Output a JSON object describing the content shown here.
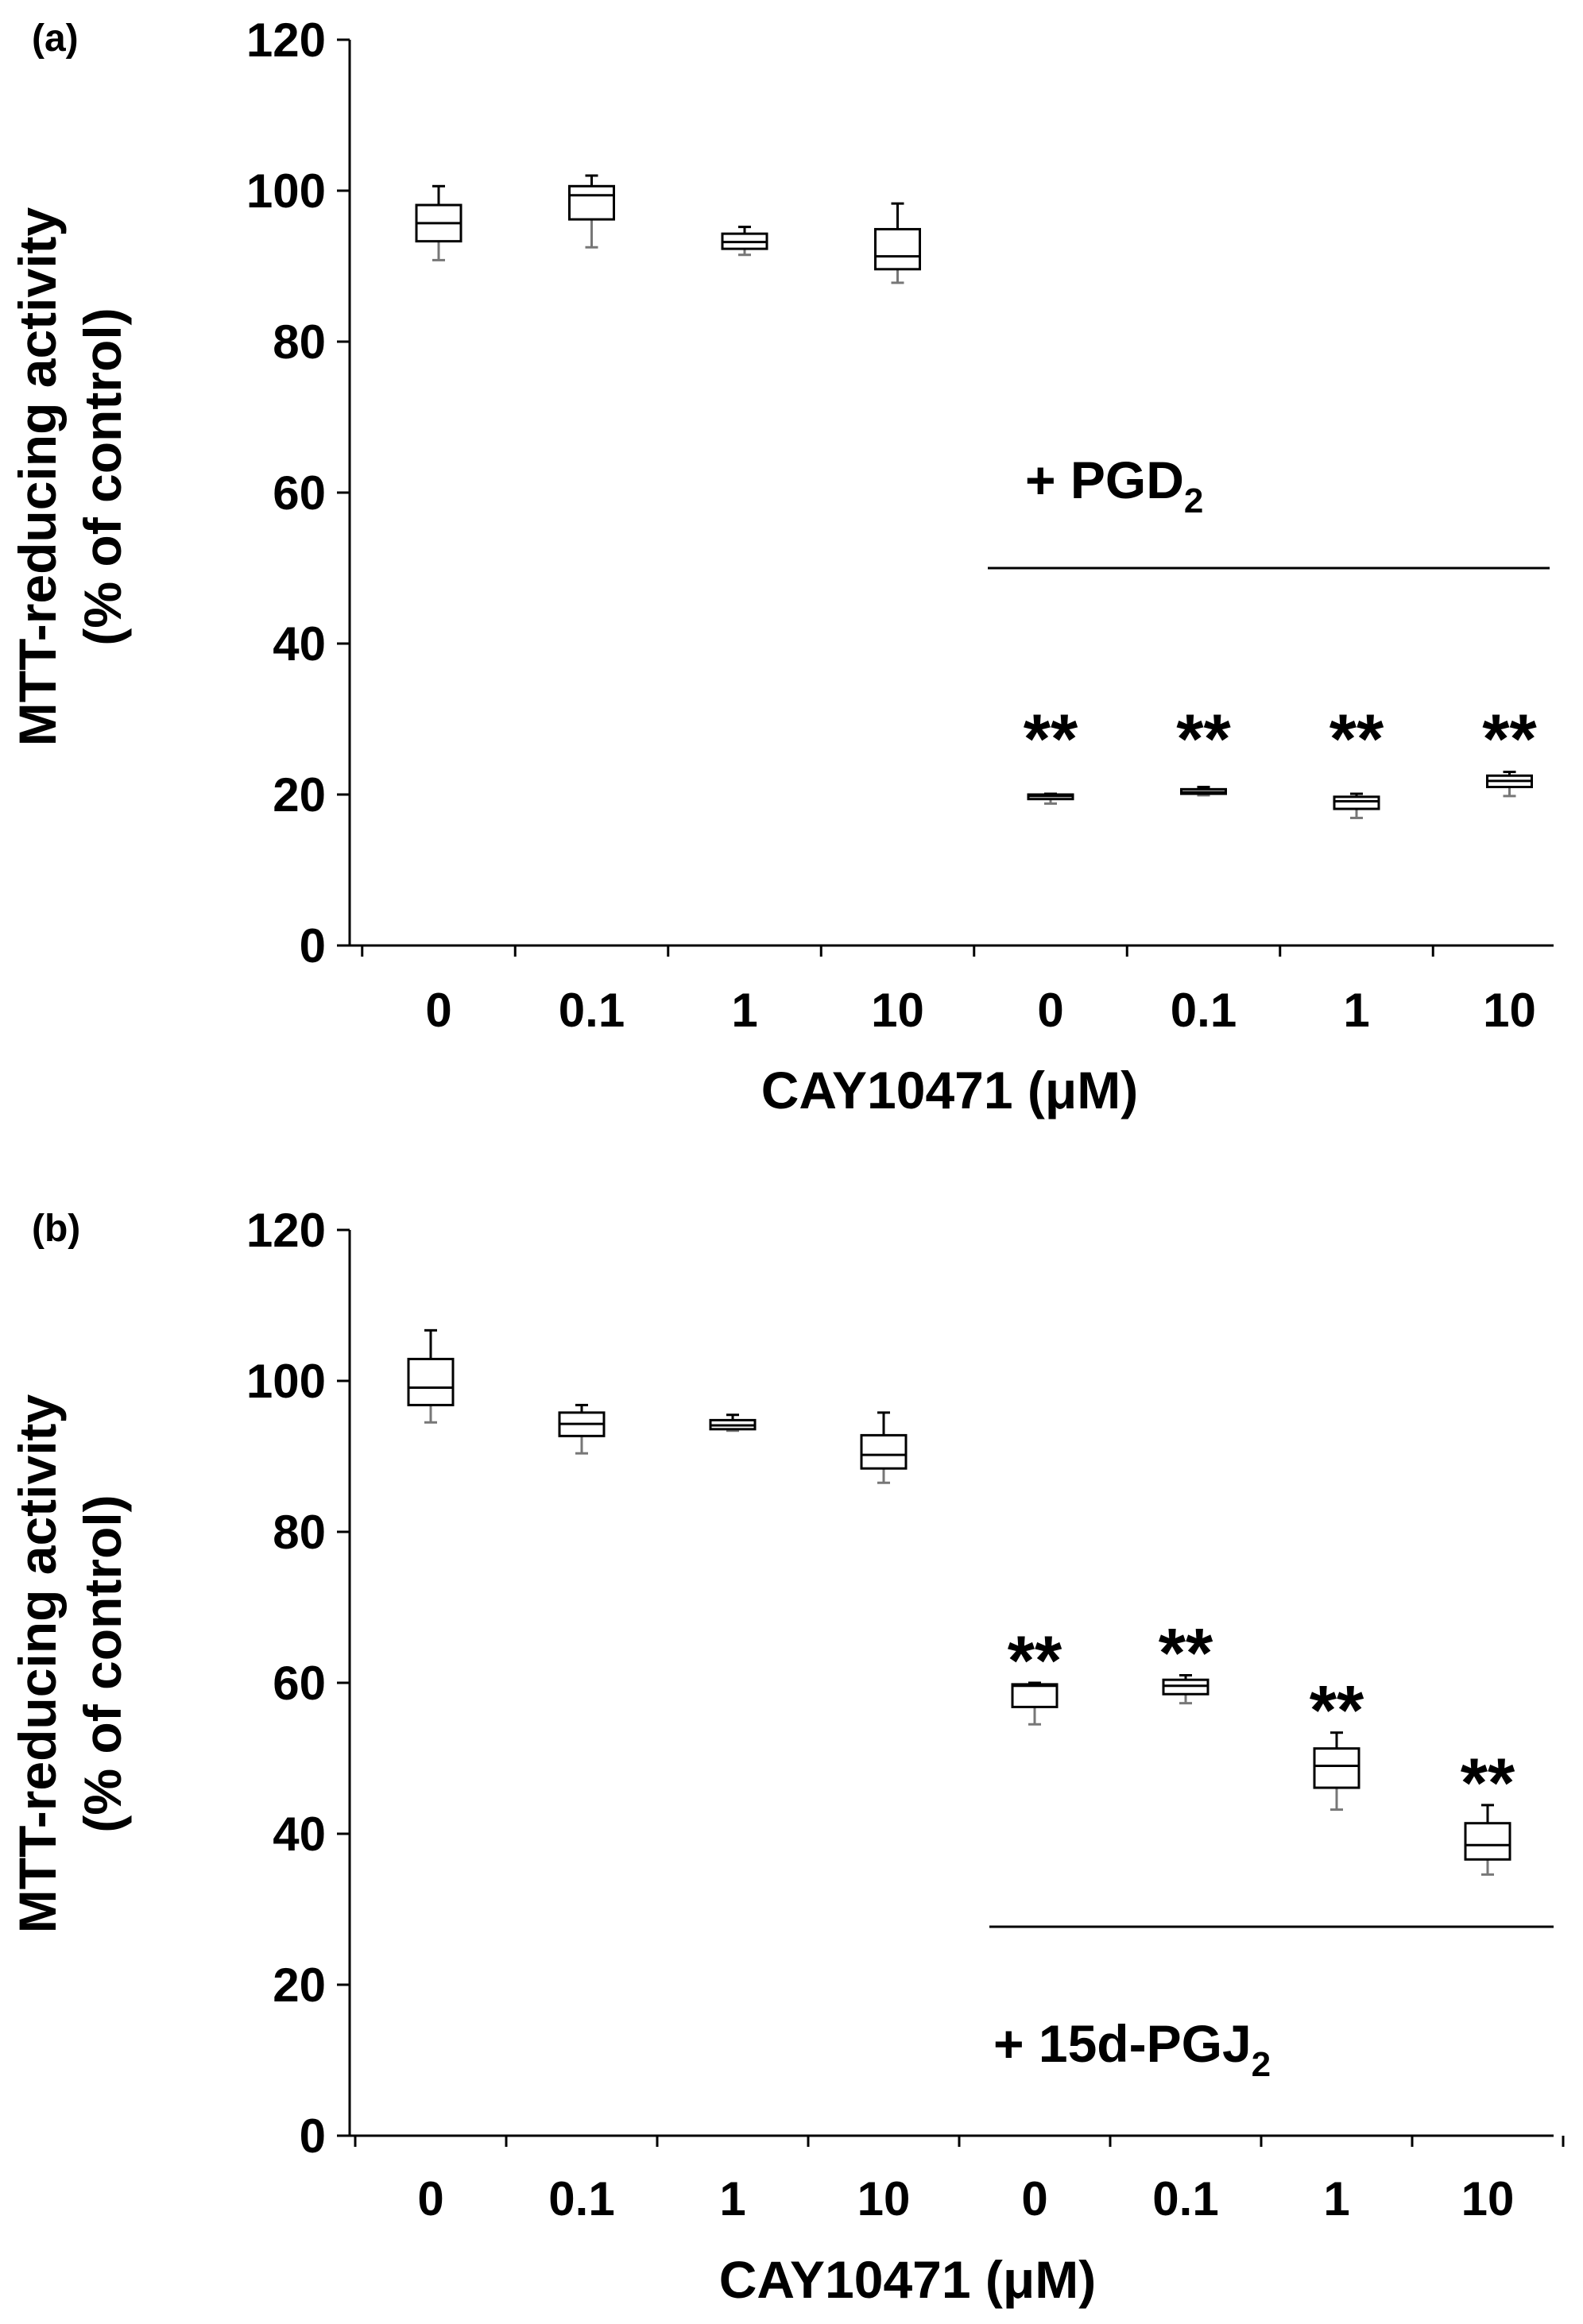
{
  "chart_data": [
    {
      "type": "box",
      "panel_label": "(a)",
      "xlabel": "CAY10471 (μM)",
      "ylabel_line1": "MTT-reducing activity",
      "ylabel_line2": "(% of control)",
      "ylim": [
        0,
        120
      ],
      "yticks": [
        "0",
        "20",
        "40",
        "60",
        "80",
        "100",
        "120"
      ],
      "categories": [
        "0",
        "0.1",
        "1",
        "10",
        "0",
        "0.1",
        "1",
        "10"
      ],
      "treatment_label": "+ PGD",
      "treatment_subscript": "2",
      "boxes": [
        {
          "min": 90.8,
          "q1": 93.3,
          "median": 95.7,
          "q3": 98.1,
          "max": 100.6,
          "sig": ""
        },
        {
          "min": 92.5,
          "q1": 96.2,
          "median": 99.4,
          "q3": 100.6,
          "max": 102.0,
          "sig": ""
        },
        {
          "min": 91.5,
          "q1": 92.3,
          "median": 93.2,
          "q3": 94.3,
          "max": 95.2,
          "sig": ""
        },
        {
          "min": 87.8,
          "q1": 89.6,
          "median": 91.3,
          "q3": 94.9,
          "max": 98.3,
          "sig": ""
        },
        {
          "min": 18.8,
          "q1": 19.4,
          "median": 19.8,
          "q3": 20.0,
          "max": 20.1,
          "sig": "**"
        },
        {
          "min": 19.9,
          "q1": 20.1,
          "median": 20.3,
          "q3": 20.7,
          "max": 21.0,
          "sig": "**"
        },
        {
          "min": 16.9,
          "q1": 18.1,
          "median": 19.1,
          "q3": 19.7,
          "max": 20.1,
          "sig": "**"
        },
        {
          "min": 19.8,
          "q1": 21.0,
          "median": 21.8,
          "q3": 22.5,
          "max": 23.0,
          "sig": "**"
        }
      ]
    },
    {
      "type": "box",
      "panel_label": "(b)",
      "xlabel": "CAY10471 (μM)",
      "ylabel_line1": "MTT-reducing activity",
      "ylabel_line2": "(% of control)",
      "ylim": [
        0,
        120
      ],
      "yticks": [
        "0",
        "20",
        "40",
        "60",
        "80",
        "100",
        "120"
      ],
      "categories": [
        "0",
        "0.1",
        "1",
        "10",
        "0",
        "0.1",
        "1",
        "10"
      ],
      "treatment_label": "+ 15d-PGJ",
      "treatment_subscript": "2",
      "boxes": [
        {
          "min": 94.5,
          "q1": 96.8,
          "median": 99.1,
          "q3": 102.9,
          "max": 106.7,
          "sig": ""
        },
        {
          "min": 90.4,
          "q1": 92.7,
          "median": 94.3,
          "q3": 95.8,
          "max": 96.8,
          "sig": ""
        },
        {
          "min": 93.4,
          "q1": 93.6,
          "median": 94.1,
          "q3": 94.8,
          "max": 95.5,
          "sig": ""
        },
        {
          "min": 86.5,
          "q1": 88.4,
          "median": 90.2,
          "q3": 92.8,
          "max": 95.8,
          "sig": ""
        },
        {
          "min": 54.5,
          "q1": 56.8,
          "median": 59.6,
          "q3": 59.8,
          "max": 60.0,
          "sig": "**"
        },
        {
          "min": 57.3,
          "q1": 58.5,
          "median": 59.6,
          "q3": 60.4,
          "max": 61.0,
          "sig": "**"
        },
        {
          "min": 43.2,
          "q1": 46.1,
          "median": 49.0,
          "q3": 51.3,
          "max": 53.4,
          "sig": "**"
        },
        {
          "min": 34.6,
          "q1": 36.6,
          "median": 38.5,
          "q3": 41.4,
          "max": 43.8,
          "sig": "**"
        }
      ]
    }
  ]
}
